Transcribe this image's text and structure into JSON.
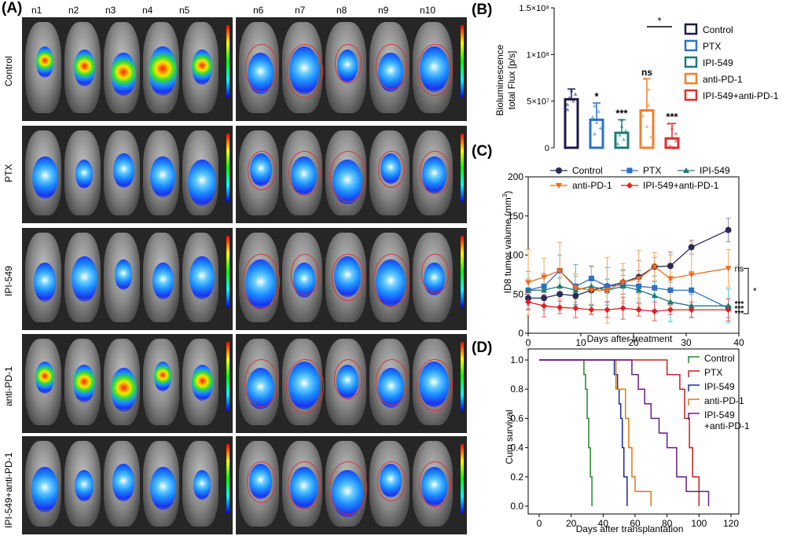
{
  "panels": {
    "A": "(A)",
    "B": "(B)",
    "C": "(C)",
    "D": "(D)"
  },
  "imaging": {
    "left_columns": [
      "n1",
      "n2",
      "n3",
      "n4",
      "n5"
    ],
    "right_columns": [
      "n6",
      "n7",
      "n8",
      "n9",
      "n10"
    ],
    "rows": [
      "Control",
      "PTX",
      "IPI-549",
      "anti-PD-1",
      "IPI-549+anti-PD-1"
    ]
  },
  "colors": {
    "Control": "#1a1a4a",
    "PTX": "#2a72c9",
    "IPI-549": "#1e7a78",
    "anti-PD-1": "#f07f2a",
    "IPI-549+anti-PD-1": "#e02c2c",
    "C_Control": "#2a2a5a",
    "C_PTX": "#2f6fc4",
    "C_IPI": "#1e7a78",
    "C_antiPD1": "#f06a1a",
    "C_combo": "#e01f1f",
    "D_Control": "#1f8a2a",
    "D_PTX": "#c81e1e",
    "D_IPI": "#1a2a9a",
    "D_antiPD1": "#e07a0a",
    "D_combo": "#6a1a8a"
  },
  "chart_data": [
    {
      "id": "B",
      "type": "bar",
      "ylabel_line1": "Bioluminescence",
      "ylabel_line2": "total Flux [p/s]",
      "yticks": [
        "0",
        "5×10⁷",
        "1×10⁸",
        "1.5×10⁸"
      ],
      "ylim": [
        0,
        150000000.0
      ],
      "categories": [
        "Control",
        "PTX",
        "IPI-549",
        "anti-PD-1",
        "IPI-549+anti-PD-1"
      ],
      "values": [
        52000000.0,
        30000000.0,
        16000000.0,
        40000000.0,
        10000000.0
      ],
      "errors": [
        11000000.0,
        18000000.0,
        14000000.0,
        34000000.0,
        16000000.0
      ],
      "significance": [
        "",
        "*",
        "***",
        "ns",
        "***"
      ],
      "bracket_label": "*",
      "legend": [
        "Control",
        "PTX",
        "IPI-549",
        "anti-PD-1",
        "IPI-549+anti-PD-1"
      ]
    },
    {
      "id": "C",
      "type": "line",
      "ylabel": "ID8 tumor valume (mm",
      "ylabel_sup": "3",
      "ylabel_end": ")",
      "xlabel": "Days after treatment",
      "xlim": [
        0,
        40
      ],
      "ylim": [
        0,
        200
      ],
      "xticks": [
        "0",
        "10",
        "20",
        "30",
        "40"
      ],
      "yticks": [
        "0",
        "50",
        "100",
        "150",
        "200"
      ],
      "x": [
        0,
        3,
        6,
        9,
        12,
        15,
        18,
        21,
        24,
        27,
        31,
        38
      ],
      "series": [
        {
          "name": "Control",
          "marker": "circle",
          "values": [
            45,
            45,
            50,
            48,
            55,
            60,
            65,
            72,
            85,
            86,
            110,
            132
          ],
          "err": 15
        },
        {
          "name": "PTX",
          "marker": "square",
          "values": [
            55,
            60,
            80,
            60,
            70,
            60,
            62,
            60,
            58,
            55,
            55,
            32
          ],
          "err": 20
        },
        {
          "name": "IPI-549",
          "marker": "triangle",
          "values": [
            55,
            55,
            60,
            55,
            60,
            55,
            60,
            55,
            48,
            40,
            35,
            35
          ],
          "err": 18
        },
        {
          "name": "anti-PD-1",
          "marker": "triangle-down",
          "values": [
            65,
            72,
            80,
            58,
            55,
            55,
            65,
            70,
            85,
            70,
            75,
            83
          ],
          "err": 30
        },
        {
          "name": "IPI-549+anti-PD-1",
          "marker": "diamond",
          "values": [
            40,
            35,
            33,
            32,
            30,
            30,
            32,
            30,
            28,
            30,
            30,
            30
          ],
          "err": 10
        }
      ],
      "end_labels": [
        "ns",
        "***",
        "***",
        "***"
      ],
      "bracket_label": "*",
      "legend": [
        "Control",
        "PTX",
        "IPI-549",
        "anti-PD-1",
        "IPI-549+anti-PD-1"
      ]
    },
    {
      "id": "D",
      "type": "line",
      "ylabel": "Cum survival",
      "xlabel": "Days after transplantation",
      "xlim": [
        0,
        120
      ],
      "ylim": [
        0,
        1.0
      ],
      "xticks": [
        "0",
        "20",
        "40",
        "60",
        "80",
        "100",
        "120"
      ],
      "yticks": [
        "0.0",
        "0.2",
        "0.4",
        "0.6",
        "0.8",
        "1.0"
      ],
      "series": [
        {
          "name": "Control",
          "x": [
            0,
            28,
            28,
            29,
            29,
            30,
            30,
            31,
            31,
            32,
            32,
            33,
            33
          ],
          "values": [
            1.0,
            1.0,
            0.9,
            0.9,
            0.8,
            0.8,
            0.6,
            0.6,
            0.4,
            0.4,
            0.2,
            0.2,
            0.0
          ]
        },
        {
          "name": "PTX",
          "x": [
            0,
            80,
            80,
            88,
            88,
            91,
            91,
            94,
            94,
            96,
            96,
            100,
            100
          ],
          "values": [
            1.0,
            1.0,
            0.9,
            0.9,
            0.8,
            0.8,
            0.6,
            0.6,
            0.4,
            0.4,
            0.2,
            0.2,
            0.0
          ]
        },
        {
          "name": "IPI-549",
          "x": [
            0,
            47,
            47,
            49,
            49,
            50,
            50,
            51,
            51,
            52,
            52,
            53,
            53,
            55,
            55
          ],
          "values": [
            1.0,
            1.0,
            0.9,
            0.9,
            0.8,
            0.8,
            0.7,
            0.7,
            0.6,
            0.6,
            0.4,
            0.4,
            0.2,
            0.2,
            0.0
          ]
        },
        {
          "name": "anti-PD-1",
          "x": [
            0,
            48,
            48,
            54,
            54,
            56,
            56,
            58,
            58,
            60,
            60,
            70,
            70
          ],
          "values": [
            1.0,
            1.0,
            0.8,
            0.8,
            0.6,
            0.6,
            0.4,
            0.4,
            0.2,
            0.2,
            0.1,
            0.1,
            0.0
          ]
        },
        {
          "name": "IPI-549+anti-PD-1",
          "x": [
            0,
            58,
            58,
            62,
            62,
            66,
            66,
            70,
            70,
            75,
            75,
            80,
            80,
            86,
            86,
            92,
            92,
            106,
            106
          ],
          "values": [
            1.0,
            1.0,
            0.9,
            0.9,
            0.8,
            0.8,
            0.7,
            0.7,
            0.6,
            0.6,
            0.5,
            0.5,
            0.4,
            0.4,
            0.2,
            0.2,
            0.1,
            0.1,
            0.0
          ]
        }
      ],
      "legend": [
        "Control",
        "PTX",
        "IPI-549",
        "anti-PD-1",
        "IPI-549\n+anti-PD-1"
      ],
      "legend_line1": [
        "Control",
        "PTX",
        "IPI-549",
        "anti-PD-1",
        "IPI-549"
      ],
      "legend_line2": [
        "",
        "",
        "",
        "",
        "+anti-PD-1"
      ]
    }
  ]
}
